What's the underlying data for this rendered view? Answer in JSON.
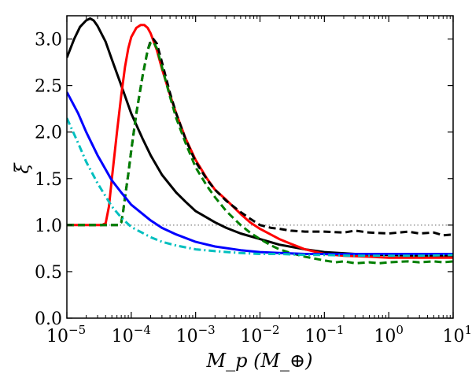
{
  "chart_data": {
    "type": "line",
    "title": "",
    "xlabel": "M_p (M_⊕)",
    "ylabel": "ξ",
    "xscale": "log",
    "xlim": [
      1e-05,
      10
    ],
    "ylim": [
      0.0,
      3.25
    ],
    "grid": false,
    "legend": "none",
    "x_ticks": [
      {
        "value": 1e-05,
        "base": "10",
        "exp": "−5"
      },
      {
        "value": 0.0001,
        "base": "10",
        "exp": "−4"
      },
      {
        "value": 0.001,
        "base": "10",
        "exp": "−3"
      },
      {
        "value": 0.01,
        "base": "10",
        "exp": "−2"
      },
      {
        "value": 0.1,
        "base": "10",
        "exp": "−1"
      },
      {
        "value": 1,
        "base": "10",
        "exp": "0"
      },
      {
        "value": 10,
        "base": "10",
        "exp": "1"
      }
    ],
    "y_ticks": [
      "0.0",
      "0.5",
      "1.0",
      "1.5",
      "2.0",
      "2.5",
      "3.0"
    ],
    "reference_line": {
      "y": 1.0,
      "color": "#808080",
      "style": "dotted"
    },
    "series": [
      {
        "name": "black solid",
        "color": "#000000",
        "style": "solid",
        "x": [
          1e-05,
          1.3e-05,
          1.6e-05,
          2e-05,
          2.3e-05,
          2.6e-05,
          3e-05,
          4e-05,
          5e-05,
          7e-05,
          0.0001,
          0.00015,
          0.0002,
          0.0003,
          0.0005,
          0.0007,
          0.001,
          0.002,
          0.003,
          0.005,
          0.01,
          0.02,
          0.05,
          0.1,
          0.3,
          1,
          3,
          10
        ],
        "y": [
          2.8,
          3.0,
          3.13,
          3.2,
          3.22,
          3.2,
          3.14,
          2.97,
          2.78,
          2.5,
          2.2,
          1.93,
          1.75,
          1.54,
          1.35,
          1.25,
          1.15,
          1.03,
          0.97,
          0.91,
          0.85,
          0.79,
          0.74,
          0.71,
          0.69,
          0.68,
          0.67,
          0.67
        ]
      },
      {
        "name": "red solid",
        "color": "#ff0000",
        "style": "solid",
        "x": [
          1e-05,
          3.5e-05,
          4e-05,
          4.5e-05,
          5e-05,
          6e-05,
          7e-05,
          8e-05,
          9e-05,
          0.0001,
          0.00012,
          0.00014,
          0.00016,
          0.00018,
          0.0002,
          0.00025,
          0.0003,
          0.0004,
          0.0005,
          0.0007,
          0.001,
          0.0015,
          0.002,
          0.003,
          0.005,
          0.007,
          0.01,
          0.02,
          0.03,
          0.05,
          0.1,
          0.2,
          0.5,
          1,
          3,
          10
        ],
        "y": [
          1.0,
          1.0,
          1.02,
          1.2,
          1.5,
          2.0,
          2.4,
          2.7,
          2.9,
          3.02,
          3.12,
          3.15,
          3.15,
          3.12,
          3.06,
          2.88,
          2.68,
          2.4,
          2.2,
          1.93,
          1.7,
          1.5,
          1.38,
          1.27,
          1.12,
          1.03,
          0.96,
          0.85,
          0.8,
          0.74,
          0.69,
          0.67,
          0.66,
          0.65,
          0.65,
          0.65
        ]
      },
      {
        "name": "black dashed",
        "color": "#000000",
        "style": "dashed",
        "x": [
          1e-05,
          6.5e-05,
          7e-05,
          7.5e-05,
          8e-05,
          9e-05,
          0.0001,
          0.00012,
          0.00015,
          0.00018,
          0.0002,
          0.00022,
          0.00025,
          0.0003,
          0.0004,
          0.0005,
          0.0007,
          0.001,
          0.0015,
          0.002,
          0.003,
          0.005,
          0.007,
          0.01,
          0.015,
          0.02,
          0.03,
          0.05,
          0.1,
          0.2,
          0.3,
          0.5,
          1,
          2,
          3,
          5,
          7,
          10
        ],
        "y": [
          1.0,
          1.0,
          1.03,
          1.15,
          1.3,
          1.55,
          1.8,
          2.2,
          2.6,
          2.88,
          2.98,
          3.0,
          2.95,
          2.75,
          2.42,
          2.2,
          1.92,
          1.68,
          1.49,
          1.38,
          1.26,
          1.14,
          1.07,
          1.0,
          0.97,
          0.96,
          0.94,
          0.93,
          0.93,
          0.92,
          0.94,
          0.92,
          0.91,
          0.93,
          0.91,
          0.92,
          0.89,
          0.9
        ]
      },
      {
        "name": "green dashed",
        "color": "#007f00",
        "style": "dashed",
        "x": [
          1e-05,
          6.5e-05,
          7e-05,
          7.5e-05,
          8e-05,
          9e-05,
          0.0001,
          0.00012,
          0.00015,
          0.00018,
          0.0002,
          0.00022,
          0.00025,
          0.0003,
          0.0004,
          0.0005,
          0.0007,
          0.001,
          0.0015,
          0.002,
          0.003,
          0.005,
          0.007,
          0.01,
          0.015,
          0.02,
          0.03,
          0.05,
          0.1,
          0.15,
          0.2,
          0.3,
          0.5,
          0.7,
          1,
          2,
          3,
          5,
          7,
          10
        ],
        "y": [
          1.0,
          1.0,
          1.03,
          1.15,
          1.3,
          1.55,
          1.8,
          2.2,
          2.6,
          2.88,
          2.96,
          2.97,
          2.9,
          2.7,
          2.38,
          2.15,
          1.88,
          1.62,
          1.42,
          1.3,
          1.15,
          1.0,
          0.92,
          0.85,
          0.78,
          0.74,
          0.7,
          0.66,
          0.62,
          0.6,
          0.61,
          0.59,
          0.6,
          0.59,
          0.6,
          0.61,
          0.6,
          0.61,
          0.6,
          0.61
        ]
      },
      {
        "name": "blue solid",
        "color": "#0000ff",
        "style": "solid",
        "x": [
          1e-05,
          1.5e-05,
          2e-05,
          3e-05,
          5e-05,
          7e-05,
          0.0001,
          0.0002,
          0.0003,
          0.0005,
          0.001,
          0.002,
          0.005,
          0.01,
          0.02,
          0.05,
          0.1,
          0.3,
          1,
          3,
          10
        ],
        "y": [
          2.43,
          2.2,
          2.0,
          1.75,
          1.48,
          1.35,
          1.22,
          1.05,
          0.97,
          0.9,
          0.82,
          0.77,
          0.73,
          0.71,
          0.7,
          0.69,
          0.69,
          0.69,
          0.69,
          0.69,
          0.69
        ]
      },
      {
        "name": "cyan dash-dot",
        "color": "#00bfbf",
        "style": "dashdot",
        "x": [
          1e-05,
          1.5e-05,
          2e-05,
          3e-05,
          5e-05,
          7e-05,
          0.0001,
          0.0002,
          0.0003,
          0.0005,
          0.001,
          0.002,
          0.005,
          0.01,
          0.02,
          0.05,
          0.1,
          0.3,
          1,
          3,
          10
        ],
        "y": [
          2.15,
          1.88,
          1.68,
          1.45,
          1.2,
          1.08,
          0.98,
          0.87,
          0.82,
          0.78,
          0.74,
          0.72,
          0.7,
          0.69,
          0.69,
          0.68,
          0.68,
          0.67,
          0.67,
          0.67,
          0.68
        ]
      }
    ]
  }
}
